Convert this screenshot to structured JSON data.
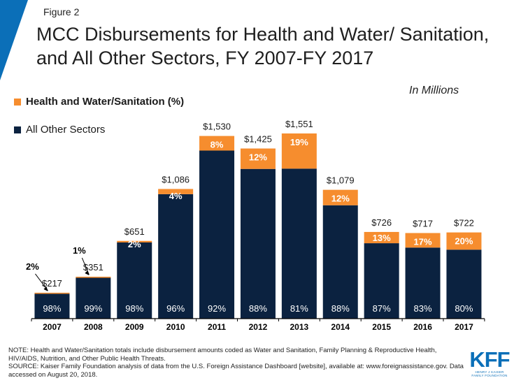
{
  "figure_label": "Figure 2",
  "title": "MCC Disbursements for Health and Water/ Sanitation, and All Other Sectors, FY 2007-FY 2017",
  "units_note": "In Millions",
  "colors": {
    "health": "#f68d2e",
    "other": "#0b2240",
    "accent_blue": "#0b6fb8",
    "axis": "#000000"
  },
  "chart_data": {
    "type": "bar",
    "stacked": true,
    "categories": [
      "2007",
      "2008",
      "2009",
      "2010",
      "2011",
      "2012",
      "2013",
      "2014",
      "2015",
      "2016",
      "2017"
    ],
    "totals": [
      217,
      351,
      651,
      1086,
      1530,
      1425,
      1551,
      1079,
      726,
      717,
      722
    ],
    "total_labels": [
      "$217",
      "$351",
      "$651",
      "$1,086",
      "$1,530",
      "$1,425",
      "$1,551",
      "$1,079",
      "$726",
      "$717",
      "$722"
    ],
    "series": [
      {
        "name": "All Other Sectors",
        "percent_labels": [
          "98%",
          "99%",
          "98%",
          "96%",
          "92%",
          "88%",
          "81%",
          "88%",
          "87%",
          "83%",
          "80%"
        ]
      },
      {
        "name": "Health and Water/Sanitation  (%)",
        "percent_labels": [
          "2%",
          "1%",
          "2%",
          "4%",
          "8%",
          "12%",
          "19%",
          "12%",
          "13%",
          "17%",
          "20%"
        ]
      }
    ],
    "percent_values": {
      "other": [
        98,
        99,
        98,
        96,
        92,
        88,
        81,
        88,
        87,
        83,
        80
      ],
      "health": [
        2,
        1,
        2,
        4,
        8,
        12,
        19,
        12,
        13,
        17,
        20
      ]
    },
    "ylim": [
      0,
      1650
    ],
    "legend_position": "top-left",
    "grid": false
  },
  "note_lines": [
    "NOTE: Health and Water/Sanitation totals include disbursement amounts coded as Water and Sanitation, Family Planning & Reproductive Health, HIV/AIDS, Nutrition, and Other Public Health Threats.",
    "SOURCE: Kaiser Family Foundation analysis of data from the U.S. Foreign Assistance Dashboard [website], available at: www.foreignassistance.gov. Data accessed on August 20, 2018."
  ],
  "logo": {
    "mark": "KFF",
    "subtitle": "HENRY J KAISER FAMILY FOUNDATION"
  }
}
